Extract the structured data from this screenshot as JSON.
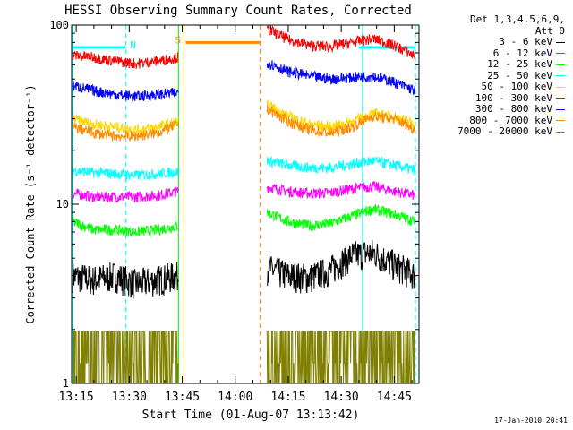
{
  "chart_data": {
    "type": "line",
    "title": "HESSI Observing Summary Count Rates, Corrected",
    "xlabel": "Start Time (01-Aug-07 13:13:42)",
    "ylabel": "Corrected Count Rate (s⁻¹ detector⁻¹)",
    "y_scale": "log",
    "ylim": [
      1,
      100
    ],
    "xlim": [
      "13:13:42",
      "14:52:00"
    ],
    "y_ticks": [
      "1",
      "10",
      "100"
    ],
    "x_ticks": [
      "13:15",
      "13:30",
      "13:45",
      "14:00",
      "14:15",
      "14:30",
      "14:45"
    ],
    "legend_header": [
      "Det 1,3,4,5,6,9,",
      "Att 0"
    ],
    "series": [
      {
        "name": "3 - 6 keV",
        "color": "#000000",
        "seg1": {
          "x": [
            "13:14",
            "13:20",
            "13:26",
            "13:32",
            "13:38",
            "13:44"
          ],
          "y": [
            4.0,
            3.8,
            4.0,
            3.6,
            3.8,
            4.0
          ]
        },
        "seg2": {
          "x": [
            "14:09",
            "14:15",
            "14:21",
            "14:27",
            "14:33",
            "14:39",
            "14:45",
            "14:51"
          ],
          "y": [
            4.4,
            4.0,
            3.9,
            4.3,
            5.2,
            5.4,
            4.6,
            4.0
          ]
        }
      },
      {
        "name": "6 - 12 keV",
        "color": "#ff00ff",
        "seg1": {
          "x": [
            "13:14",
            "13:20",
            "13:26",
            "13:32",
            "13:38",
            "13:44"
          ],
          "y": [
            11.5,
            11.0,
            11.0,
            11.0,
            11.2,
            11.8
          ]
        },
        "seg2": {
          "x": [
            "14:09",
            "14:15",
            "14:21",
            "14:27",
            "14:33",
            "14:39",
            "14:45",
            "14:51"
          ],
          "y": [
            12.5,
            11.8,
            11.5,
            11.6,
            12.2,
            12.6,
            11.8,
            11.2
          ]
        }
      },
      {
        "name": "12 - 25 keV",
        "color": "#00ff00",
        "seg1": {
          "x": [
            "13:14",
            "13:20",
            "13:26",
            "13:32",
            "13:38",
            "13:44"
          ],
          "y": [
            8.0,
            7.2,
            7.2,
            7.0,
            7.2,
            7.6
          ]
        },
        "seg2": {
          "x": [
            "14:09",
            "14:15",
            "14:21",
            "14:27",
            "14:33",
            "14:39",
            "14:45",
            "14:51"
          ],
          "y": [
            9.0,
            8.0,
            7.6,
            7.8,
            8.6,
            9.4,
            8.8,
            8.0
          ]
        }
      },
      {
        "name": "25 - 50 keV",
        "color": "#00ffff",
        "seg1": {
          "x": [
            "13:14",
            "13:20",
            "13:26",
            "13:32",
            "13:38",
            "13:44"
          ],
          "y": [
            15.5,
            15.0,
            14.8,
            14.5,
            14.8,
            15.2
          ]
        },
        "seg2": {
          "x": [
            "14:09",
            "14:15",
            "14:21",
            "14:27",
            "14:33",
            "14:39",
            "14:45",
            "14:51"
          ],
          "y": [
            17.5,
            16.5,
            16.0,
            16.0,
            16.8,
            17.5,
            16.5,
            15.5
          ]
        }
      },
      {
        "name": "50 - 100 keV",
        "color": "#ffd700",
        "seg1": {
          "x": [
            "13:14",
            "13:20",
            "13:26",
            "13:32",
            "13:38",
            "13:44"
          ],
          "y": [
            30.0,
            28.0,
            27.0,
            26.0,
            27.0,
            29.0
          ]
        },
        "seg2": {
          "x": [
            "14:09",
            "14:15",
            "14:21",
            "14:27",
            "14:33",
            "14:39",
            "14:45",
            "14:51"
          ],
          "y": [
            36.0,
            31.0,
            28.0,
            27.0,
            29.0,
            32.0,
            31.0,
            28.0
          ]
        }
      },
      {
        "name": "100 - 300 keV",
        "color": "#ff0000",
        "seg1": {
          "x": [
            "13:14",
            "13:20",
            "13:26",
            "13:32",
            "13:38",
            "13:44"
          ],
          "y": [
            68.0,
            66.0,
            63.0,
            61.0,
            63.0,
            66.0
          ]
        },
        "seg2": {
          "x": [
            "14:09",
            "14:15",
            "14:21",
            "14:27",
            "14:33",
            "14:39",
            "14:45",
            "14:51"
          ],
          "y": [
            95.0,
            83.0,
            77.0,
            76.0,
            80.0,
            84.0,
            77.0,
            67.0
          ]
        }
      },
      {
        "name": "300 - 800 keV",
        "color": "#0000ff",
        "seg1": {
          "x": [
            "13:14",
            "13:20",
            "13:26",
            "13:32",
            "13:38",
            "13:44"
          ],
          "y": [
            46.0,
            43.0,
            41.0,
            40.0,
            41.0,
            42.0
          ]
        },
        "seg2": {
          "x": [
            "14:09",
            "14:15",
            "14:21",
            "14:27",
            "14:33",
            "14:39",
            "14:45",
            "14:51"
          ],
          "y": [
            62.0,
            55.0,
            52.0,
            50.0,
            51.0,
            52.0,
            48.0,
            43.0
          ]
        }
      },
      {
        "name": "800 - 7000 keV",
        "color": "#ff8c00",
        "seg1": {
          "x": [
            "13:14",
            "13:20",
            "13:26",
            "13:32",
            "13:38",
            "13:44"
          ],
          "y": [
            27.0,
            25.0,
            24.0,
            24.0,
            25.0,
            28.0
          ]
        },
        "seg2": {
          "x": [
            "14:09",
            "14:15",
            "14:21",
            "14:27",
            "14:33",
            "14:39",
            "14:45",
            "14:51"
          ],
          "y": [
            34.0,
            29.0,
            26.0,
            25.0,
            27.0,
            31.0,
            30.0,
            26.0
          ]
        }
      },
      {
        "name": "7000 - 20000 keV",
        "color": "#808000",
        "seg1": {
          "x": [
            "13:14",
            "13:20",
            "13:26",
            "13:32",
            "13:38",
            "13:44"
          ],
          "y": [
            1.6,
            1.0,
            1.6,
            1.6,
            1.6,
            1.0
          ]
        },
        "seg2": {
          "x": [
            "14:09",
            "14:15",
            "14:21",
            "14:27",
            "14:33",
            "14:39",
            "14:45",
            "14:51"
          ],
          "y": [
            1.6,
            1.3,
            1.6,
            1.9,
            1.9,
            1.9,
            1.9,
            1.6
          ]
        }
      }
    ],
    "flags": [
      {
        "label": "N",
        "color": "#00ffff",
        "x_start": "13:14",
        "x_end": "13:29",
        "y": 75
      },
      {
        "label": "",
        "color": "#00ffff",
        "x_start": "14:35",
        "x_end": "14:51",
        "y": 75
      },
      {
        "label": "S",
        "color": "#ff8c00",
        "x_start": "13:46",
        "x_end": "14:07",
        "y": 80
      }
    ],
    "markers": [
      {
        "x": "13:14",
        "color": "#00ffff",
        "style": "solid"
      },
      {
        "x": "13:29",
        "color": "#00ffff",
        "style": "dashed"
      },
      {
        "x": "13:44",
        "color": "#00ff00",
        "style": "solid"
      },
      {
        "x": "13:45.5",
        "color": "#ff8c00",
        "style": "solid"
      },
      {
        "x": "14:07",
        "color": "#ff8c00",
        "style": "dashed"
      },
      {
        "x": "14:36",
        "color": "#00ffff",
        "style": "solid"
      },
      {
        "x": "14:51",
        "color": "#00ffff",
        "style": "dashed"
      }
    ]
  },
  "footer": {
    "datestamp": "17-Jan-2010 20:41"
  }
}
